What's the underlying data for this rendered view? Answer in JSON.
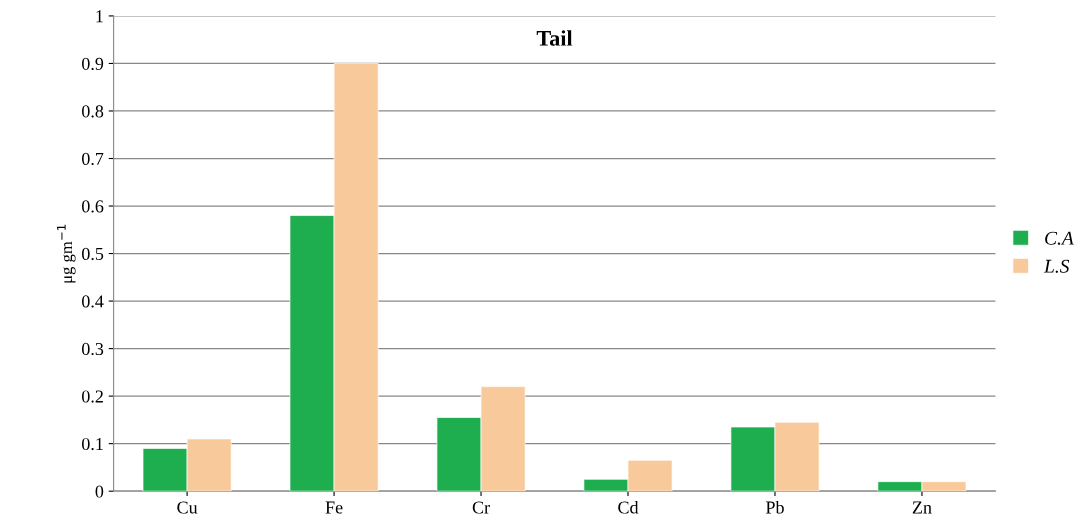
{
  "chart_data": {
    "type": "bar",
    "title": "Tail",
    "ylabel": "μg gm$^{−1}$",
    "categories": [
      "Cu",
      "Fe",
      "Cr",
      "Cd",
      "Pb",
      "Zn"
    ],
    "series": [
      {
        "name": "C.A",
        "color": "#1fae4f",
        "values": [
          0.09,
          0.58,
          0.155,
          0.025,
          0.135,
          0.02
        ]
      },
      {
        "name": "L.S",
        "color": "#f8c99a",
        "values": [
          0.11,
          0.9,
          0.22,
          0.065,
          0.145,
          0.02
        ]
      }
    ],
    "ylim": [
      0,
      1
    ],
    "yticks": [
      0,
      0.1,
      0.2,
      0.3,
      0.4,
      0.5,
      0.6,
      0.7,
      0.8,
      0.9,
      1
    ],
    "grid": "y",
    "legend": "right"
  }
}
